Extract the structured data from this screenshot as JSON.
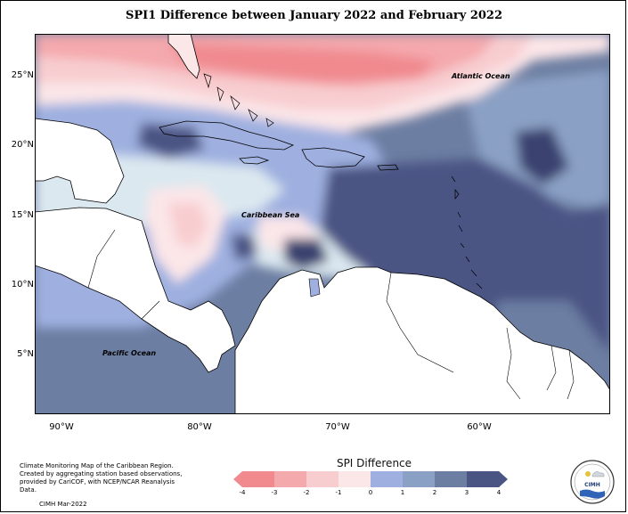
{
  "title": "SPI1 Difference between January 2022 and February 2022",
  "map": {
    "regions": {
      "atlantic": "Atlantic Ocean",
      "caribbean": "Caribbean Sea",
      "pacific": "Pacific Ocean"
    },
    "lat_ticks": [
      "25°N",
      "20°N",
      "15°N",
      "10°N",
      "5°N"
    ],
    "lon_ticks": [
      "90°W",
      "80°W",
      "70°W",
      "60°W"
    ]
  },
  "legend": {
    "title": "SPI Difference",
    "labels": [
      "-4",
      "-3",
      "-2",
      "-1",
      "0",
      "1",
      "2",
      "3",
      "4"
    ],
    "colors": [
      "#f08a8f",
      "#f4a9ad",
      "#f8cdd0",
      "#fbe6e8",
      "#dbe8f0",
      "#9fb0e0",
      "#8aa0c4",
      "#6c7ea2",
      "#4b5584"
    ]
  },
  "credit": {
    "lines": [
      "Climate Monitoring Map of the Caribbean Region.",
      "Created by aggregating station based observations,",
      "provided by CariCOF, with NCEP/NCAR Reanalysis Data."
    ],
    "date": "CIMH Mar-2022"
  },
  "logo": {
    "text": "CIMH"
  }
}
